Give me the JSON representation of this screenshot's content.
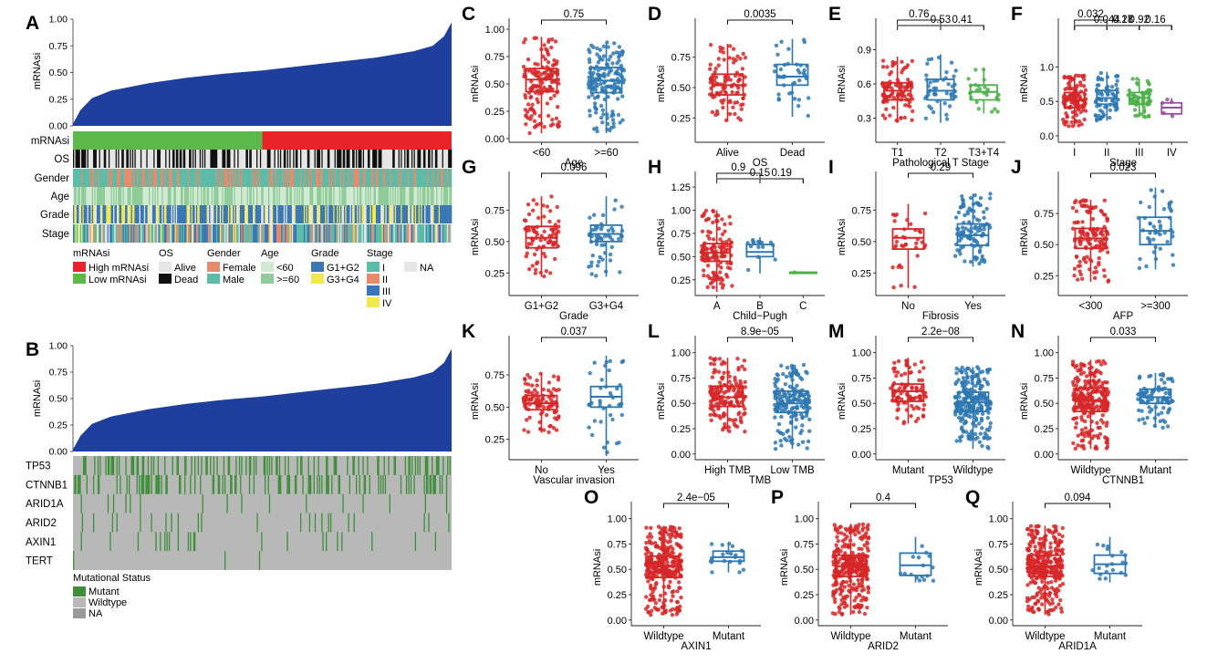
{
  "colors": {
    "red": "#D62728",
    "blue": "#2E78B2",
    "green": "#4DAF4A",
    "purple": "#984EA3",
    "waterfall": "#1F3F9E",
    "high_mrnasi": "#E8242A",
    "low_mrnasi": "#5DB84A",
    "female": "#E88A6C",
    "male": "#5BBCA8",
    "age_lt60": "#D2EAD4",
    "age_ge60": "#8FCC99",
    "g1g2": "#3A78B5",
    "g3g4": "#F2E94E",
    "stage_I": "#5BBCA8",
    "stage_II": "#E88A6C",
    "stage_III": "#3A78B5",
    "stage_IV": "#F2E94E",
    "na": "#E6E6E6",
    "mutant": "#3F8F3A",
    "wildtype": "#B8B8B8",
    "mut_na": "#9A9A9A"
  },
  "panel_A": {
    "letter": "A",
    "ylabel": "mRNAsi",
    "yticks": [
      "1.00",
      "0.75",
      "0.50",
      "0.25",
      "0.00"
    ],
    "tracks": [
      "mRNAsi",
      "OS",
      "Gender",
      "Age",
      "Grade",
      "Stage"
    ],
    "legend": {
      "mrnasi": {
        "title": "mRNAsi",
        "items": [
          "High mRNAsi",
          "Low mRNAsi"
        ]
      },
      "os": {
        "title": "OS",
        "items": [
          "Alive",
          "Dead"
        ]
      },
      "gender": {
        "title": "Gender",
        "items": [
          "Female",
          "Male"
        ]
      },
      "age": {
        "title": "Age",
        "items": [
          "<60",
          ">=60"
        ]
      },
      "grade": {
        "title": "Grade",
        "items": [
          "G1+G2",
          "G3+G4"
        ]
      },
      "stage": {
        "title": "Stage",
        "items": [
          "I",
          "II",
          "III",
          "IV"
        ]
      },
      "na": {
        "items": [
          "NA"
        ]
      }
    }
  },
  "panel_B": {
    "letter": "B",
    "ylabel": "mRNAsi",
    "yticks": [
      "1.00",
      "0.75",
      "0.50",
      "0.25",
      "0.00"
    ],
    "genes": [
      "TP53",
      "CTNNB1",
      "ARID1A",
      "ARID2",
      "AXIN1",
      "TERT"
    ],
    "legend": {
      "title": "Mutational Status",
      "items": [
        "Mutant",
        "Wildtype",
        "NA"
      ]
    }
  },
  "chart_data": [
    {
      "type": "line",
      "id": "A",
      "title": "",
      "ylabel": "mRNAsi",
      "ylim": [
        0,
        1
      ],
      "description_points": {
        "x_fraction": [
          0,
          0.02,
          0.05,
          0.1,
          0.2,
          0.3,
          0.4,
          0.5,
          0.6,
          0.7,
          0.8,
          0.9,
          0.95,
          0.98,
          1.0
        ],
        "y": [
          0.02,
          0.15,
          0.26,
          0.33,
          0.4,
          0.45,
          0.49,
          0.52,
          0.56,
          0.6,
          0.64,
          0.7,
          0.75,
          0.84,
          0.97
        ]
      }
    },
    {
      "type": "line",
      "id": "B",
      "title": "",
      "ylabel": "mRNAsi",
      "ylim": [
        0,
        1
      ],
      "description_points": {
        "x_fraction": [
          0,
          0.02,
          0.05,
          0.1,
          0.2,
          0.3,
          0.4,
          0.5,
          0.6,
          0.7,
          0.8,
          0.9,
          0.95,
          0.98,
          1.0
        ],
        "y": [
          0.02,
          0.15,
          0.26,
          0.33,
          0.4,
          0.45,
          0.49,
          0.52,
          0.56,
          0.6,
          0.64,
          0.7,
          0.75,
          0.84,
          0.97
        ]
      }
    },
    {
      "type": "box",
      "id": "C",
      "letter": "C",
      "xlabel": "Age",
      "ylabel": "mRNAsi",
      "ylim": [
        0,
        1.0
      ],
      "yticks": [
        0,
        0.25,
        0.5,
        0.75,
        1.0
      ],
      "ytick_labels": [
        "0.00",
        "0.25",
        "0.50",
        "0.75",
        "1.00"
      ],
      "categories": [
        "<60",
        ">=60"
      ],
      "colors": [
        "red",
        "blue"
      ],
      "boxes": [
        {
          "min": 0.05,
          "q1": 0.43,
          "med": 0.54,
          "q3": 0.64,
          "max": 0.93
        },
        {
          "min": 0.05,
          "q1": 0.42,
          "med": 0.53,
          "q3": 0.65,
          "max": 0.88
        }
      ],
      "n": [
        150,
        160
      ],
      "comparisons": [
        {
          "a": 0,
          "b": 1,
          "label": "0.75"
        }
      ]
    },
    {
      "type": "box",
      "id": "D",
      "letter": "D",
      "xlabel": "OS",
      "ylabel": "mRNAsi",
      "ylim": [
        0.08,
        0.98
      ],
      "yticks": [
        0.25,
        0.5,
        0.75
      ],
      "ytick_labels": [
        "0.25",
        "0.50",
        "0.75"
      ],
      "categories": [
        "Alive",
        "Dead"
      ],
      "colors": [
        "red",
        "blue"
      ],
      "boxes": [
        {
          "min": 0.22,
          "q1": 0.44,
          "med": 0.52,
          "q3": 0.61,
          "max": 0.86
        },
        {
          "min": 0.26,
          "q1": 0.52,
          "med": 0.59,
          "q3": 0.69,
          "max": 0.9
        }
      ],
      "n": [
        100,
        40
      ],
      "comparisons": [
        {
          "a": 0,
          "b": 1,
          "label": "0.0035"
        }
      ]
    },
    {
      "type": "box",
      "id": "E",
      "letter": "E",
      "xlabel": "Pathological T Stage",
      "ylabel": "mRNAsi",
      "ylim": [
        0.12,
        1.08
      ],
      "yticks": [
        0.3,
        0.6,
        0.9
      ],
      "ytick_labels": [
        "0.3",
        "0.6",
        "0.9"
      ],
      "categories": [
        "T1",
        "T2",
        "T3+T4"
      ],
      "colors": [
        "red",
        "blue",
        "green"
      ],
      "boxes": [
        {
          "min": 0.27,
          "q1": 0.46,
          "med": 0.54,
          "q3": 0.61,
          "max": 0.84
        },
        {
          "min": 0.26,
          "q1": 0.46,
          "med": 0.54,
          "q3": 0.64,
          "max": 0.86
        },
        {
          "min": 0.34,
          "q1": 0.46,
          "med": 0.53,
          "q3": 0.59,
          "max": 0.73
        }
      ],
      "n": [
        100,
        45,
        25
      ],
      "comparisons": [
        {
          "a": 0,
          "b": 1,
          "label": "0.76"
        },
        {
          "a": 0,
          "b": 2,
          "label": "0.53"
        },
        {
          "a": 1,
          "b": 2,
          "label": "0.41"
        }
      ]
    },
    {
      "type": "box",
      "id": "F",
      "letter": "F",
      "xlabel": "Stage",
      "ylabel": "mRNAsi",
      "ylim": [
        -0.04,
        1.55
      ],
      "yticks": [
        0,
        0.5,
        1.0
      ],
      "ytick_labels": [
        "0.0",
        "0.5",
        "1.0"
      ],
      "categories": [
        "I",
        "II",
        "III",
        "IV"
      ],
      "colors": [
        "red",
        "blue",
        "green",
        "purple"
      ],
      "boxes": [
        {
          "min": 0.14,
          "q1": 0.41,
          "med": 0.52,
          "q3": 0.63,
          "max": 0.88
        },
        {
          "min": 0.22,
          "q1": 0.46,
          "med": 0.55,
          "q3": 0.66,
          "max": 0.93
        },
        {
          "min": 0.27,
          "q1": 0.46,
          "med": 0.55,
          "q3": 0.63,
          "max": 0.83
        },
        {
          "min": 0.28,
          "q1": 0.32,
          "med": 0.41,
          "q3": 0.48,
          "max": 0.55
        }
      ],
      "n": [
        120,
        70,
        60,
        5
      ],
      "comparisons": [
        {
          "a": 0,
          "b": 1,
          "label": "0.032"
        },
        {
          "a": 0,
          "b": 2,
          "label": "0.044"
        },
        {
          "a": 1,
          "b": 2,
          "label": "0.28"
        },
        {
          "a": 1,
          "b": 3,
          "label": "0.92"
        },
        {
          "a": 2,
          "b": 3,
          "label": "0.16"
        },
        {
          "a": 0,
          "b": 3,
          "label": "0.17"
        }
      ]
    },
    {
      "type": "box",
      "id": "G",
      "letter": "G",
      "xlabel": "Grade",
      "ylabel": "mRNAsi",
      "ylim": [
        0.1,
        0.97
      ],
      "yticks": [
        0.25,
        0.5,
        0.75
      ],
      "ytick_labels": [
        "0.25",
        "0.50",
        "0.75"
      ],
      "categories": [
        "G1+G2",
        "G3+G4"
      ],
      "colors": [
        "red",
        "blue"
      ],
      "boxes": [
        {
          "min": 0.22,
          "q1": 0.45,
          "med": 0.53,
          "q3": 0.62,
          "max": 0.86
        },
        {
          "min": 0.22,
          "q1": 0.5,
          "med": 0.56,
          "q3": 0.63,
          "max": 0.86
        }
      ],
      "n": [
        80,
        55
      ],
      "comparisons": [
        {
          "a": 0,
          "b": 1,
          "label": "0.096"
        }
      ]
    },
    {
      "type": "box",
      "id": "H",
      "letter": "H",
      "xlabel": "Child−Pugh",
      "ylabel": "mRNAsi",
      "ylim": [
        0.12,
        1.3
      ],
      "yticks": [
        0.25,
        0.5,
        0.75,
        1.0,
        1.25
      ],
      "ytick_labels": [
        "0.25",
        "0.50",
        "0.75",
        "1.00",
        "1.25"
      ],
      "categories": [
        "A",
        "B",
        "C"
      ],
      "colors": [
        "red",
        "blue",
        "green"
      ],
      "boxes": [
        {
          "min": 0.12,
          "q1": 0.45,
          "med": 0.54,
          "q3": 0.64,
          "max": 1.0
        },
        {
          "min": 0.32,
          "q1": 0.5,
          "med": 0.55,
          "q3": 0.63,
          "max": 0.71
        },
        {
          "min": 0.33,
          "q1": 0.33,
          "med": 0.33,
          "q3": 0.33,
          "max": 0.33
        }
      ],
      "n": [
        130,
        15,
        1
      ],
      "comparisons": [
        {
          "a": 0,
          "b": 1,
          "label": "0.9"
        },
        {
          "a": 0,
          "b": 2,
          "label": "0.15"
        },
        {
          "a": 1,
          "b": 2,
          "label": "0.19"
        }
      ]
    },
    {
      "type": "box",
      "id": "I",
      "letter": "I",
      "xlabel": "Fibrosis",
      "ylabel": "mRNAsi",
      "ylim": [
        0.1,
        0.97
      ],
      "yticks": [
        0.25,
        0.5,
        0.75
      ],
      "ytick_labels": [
        "0.25",
        "0.50",
        "0.75"
      ],
      "categories": [
        "No",
        "Yes"
      ],
      "colors": [
        "red",
        "blue"
      ],
      "boxes": [
        {
          "min": 0.13,
          "q1": 0.44,
          "med": 0.53,
          "q3": 0.6,
          "max": 0.8
        },
        {
          "min": 0.3,
          "q1": 0.47,
          "med": 0.55,
          "q3": 0.64,
          "max": 0.88
        }
      ],
      "n": [
        35,
        110
      ],
      "comparisons": [
        {
          "a": 0,
          "b": 1,
          "label": "0.29"
        }
      ]
    },
    {
      "type": "box",
      "id": "J",
      "letter": "J",
      "xlabel": "AFP",
      "ylabel": "mRNAsi",
      "ylim": [
        0.12,
        1.0
      ],
      "yticks": [
        0.25,
        0.5,
        0.75
      ],
      "ytick_labels": [
        "0.25",
        "0.50",
        "0.75"
      ],
      "categories": [
        "<300",
        ">=300"
      ],
      "colors": [
        "red",
        "blue"
      ],
      "boxes": [
        {
          "min": 0.2,
          "q1": 0.47,
          "med": 0.55,
          "q3": 0.63,
          "max": 0.86
        },
        {
          "min": 0.3,
          "q1": 0.5,
          "med": 0.61,
          "q3": 0.72,
          "max": 0.96
        }
      ],
      "n": [
        130,
        45
      ],
      "comparisons": [
        {
          "a": 0,
          "b": 1,
          "label": "0.023"
        }
      ]
    },
    {
      "type": "box",
      "id": "K",
      "letter": "K",
      "xlabel": "Vascular invasion",
      "ylabel": "mRNAsi",
      "ylim": [
        0.12,
        0.97
      ],
      "yticks": [
        0.25,
        0.5,
        0.75
      ],
      "ytick_labels": [
        "0.25",
        "0.50",
        "0.75"
      ],
      "categories": [
        "No",
        "Yes"
      ],
      "colors": [
        "red",
        "blue"
      ],
      "boxes": [
        {
          "min": 0.3,
          "q1": 0.48,
          "med": 0.53,
          "q3": 0.59,
          "max": 0.76
        },
        {
          "min": 0.12,
          "q1": 0.5,
          "med": 0.58,
          "q3": 0.66,
          "max": 0.9
        }
      ],
      "n": [
        100,
        40
      ],
      "comparisons": [
        {
          "a": 0,
          "b": 1,
          "label": "0.037"
        }
      ]
    },
    {
      "type": "box",
      "id": "L",
      "letter": "L",
      "xlabel": "TMB",
      "ylabel": "mRNAsi",
      "ylim": [
        -0.02,
        1.06
      ],
      "yticks": [
        0,
        0.25,
        0.5,
        0.75,
        1.0
      ],
      "ytick_labels": [
        "0.00",
        "0.25",
        "0.50",
        "0.75",
        "1.00"
      ],
      "categories": [
        "High TMB",
        "Low TMB"
      ],
      "colors": [
        "red",
        "blue"
      ],
      "boxes": [
        {
          "min": 0.22,
          "q1": 0.47,
          "med": 0.56,
          "q3": 0.67,
          "max": 0.95
        },
        {
          "min": 0.05,
          "q1": 0.41,
          "med": 0.5,
          "q3": 0.62,
          "max": 0.88
        }
      ],
      "n": [
        160,
        180
      ],
      "comparisons": [
        {
          "a": 0,
          "b": 1,
          "label": "8.9e−05"
        }
      ]
    },
    {
      "type": "box",
      "id": "M",
      "letter": "M",
      "xlabel": "TP53",
      "ylabel": "mRNAsi",
      "ylim": [
        -0.02,
        1.06
      ],
      "yticks": [
        0,
        0.25,
        0.5,
        0.75,
        1.0
      ],
      "ytick_labels": [
        "0.00",
        "0.25",
        "0.50",
        "0.75",
        "1.00"
      ],
      "categories": [
        "Mutant",
        "Wildtype"
      ],
      "colors": [
        "red",
        "blue"
      ],
      "boxes": [
        {
          "min": 0.3,
          "q1": 0.52,
          "med": 0.62,
          "q3": 0.69,
          "max": 0.95
        },
        {
          "min": 0.05,
          "q1": 0.42,
          "med": 0.51,
          "q3": 0.61,
          "max": 0.86
        }
      ],
      "n": [
        100,
        250
      ],
      "comparisons": [
        {
          "a": 0,
          "b": 1,
          "label": "2.2e−08"
        }
      ]
    },
    {
      "type": "box",
      "id": "N",
      "letter": "N",
      "xlabel": "CTNNB1",
      "ylabel": "mRNAsi",
      "ylim": [
        -0.02,
        1.06
      ],
      "yticks": [
        0,
        0.25,
        0.5,
        0.75,
        1.0
      ],
      "ytick_labels": [
        "0.00",
        "0.25",
        "0.50",
        "0.75",
        "1.00"
      ],
      "categories": [
        "Wildtype",
        "Mutant"
      ],
      "colors": [
        "red",
        "blue"
      ],
      "boxes": [
        {
          "min": 0.05,
          "q1": 0.42,
          "med": 0.53,
          "q3": 0.65,
          "max": 0.93
        },
        {
          "min": 0.26,
          "q1": 0.5,
          "med": 0.56,
          "q3": 0.64,
          "max": 0.8
        }
      ],
      "n": [
        260,
        90
      ],
      "comparisons": [
        {
          "a": 0,
          "b": 1,
          "label": "0.033"
        }
      ]
    },
    {
      "type": "box",
      "id": "O",
      "letter": "O",
      "xlabel": "AXIN1",
      "ylabel": "mRNAsi",
      "ylim": [
        -0.02,
        1.06
      ],
      "yticks": [
        0,
        0.25,
        0.5,
        0.75,
        1.0
      ],
      "ytick_labels": [
        "0.00",
        "0.25",
        "0.50",
        "0.75",
        "1.00"
      ],
      "categories": [
        "Wildtype",
        "Mutant"
      ],
      "colors": [
        "red",
        "blue"
      ],
      "boxes": [
        {
          "min": 0.05,
          "q1": 0.42,
          "med": 0.53,
          "q3": 0.63,
          "max": 0.93
        },
        {
          "min": 0.47,
          "q1": 0.58,
          "med": 0.62,
          "q3": 0.68,
          "max": 0.76
        }
      ],
      "n": [
        330,
        20
      ],
      "comparisons": [
        {
          "a": 0,
          "b": 1,
          "label": "2.4e−05"
        }
      ]
    },
    {
      "type": "box",
      "id": "P",
      "letter": "P",
      "xlabel": "ARID2",
      "ylabel": "mRNAsi",
      "ylim": [
        -0.02,
        1.06
      ],
      "yticks": [
        0,
        0.25,
        0.5,
        0.75,
        1.0
      ],
      "ytick_labels": [
        "0.00",
        "0.25",
        "0.50",
        "0.75",
        "1.00"
      ],
      "categories": [
        "Wildtype",
        "Mutant"
      ],
      "colors": [
        "red",
        "blue"
      ],
      "boxes": [
        {
          "min": 0.05,
          "q1": 0.43,
          "med": 0.53,
          "q3": 0.64,
          "max": 0.95
        },
        {
          "min": 0.37,
          "q1": 0.44,
          "med": 0.54,
          "q3": 0.66,
          "max": 0.82
        }
      ],
      "n": [
        335,
        16
      ],
      "comparisons": [
        {
          "a": 0,
          "b": 1,
          "label": "0.4"
        }
      ]
    },
    {
      "type": "box",
      "id": "Q",
      "letter": "Q",
      "xlabel": "ARID1A",
      "ylabel": "mRNAsi",
      "ylim": [
        -0.02,
        1.06
      ],
      "yticks": [
        0,
        0.25,
        0.5,
        0.75,
        1.0
      ],
      "ytick_labels": [
        "0.00",
        "0.25",
        "0.50",
        "0.75",
        "1.00"
      ],
      "categories": [
        "Wildtype",
        "Mutant"
      ],
      "colors": [
        "red",
        "blue"
      ],
      "boxes": [
        {
          "min": 0.05,
          "q1": 0.43,
          "med": 0.53,
          "q3": 0.64,
          "max": 0.93
        },
        {
          "min": 0.37,
          "q1": 0.46,
          "med": 0.55,
          "q3": 0.64,
          "max": 0.82
        }
      ],
      "n": [
        330,
        20
      ],
      "comparisons": [
        {
          "a": 0,
          "b": 1,
          "label": "0.094"
        }
      ]
    }
  ]
}
